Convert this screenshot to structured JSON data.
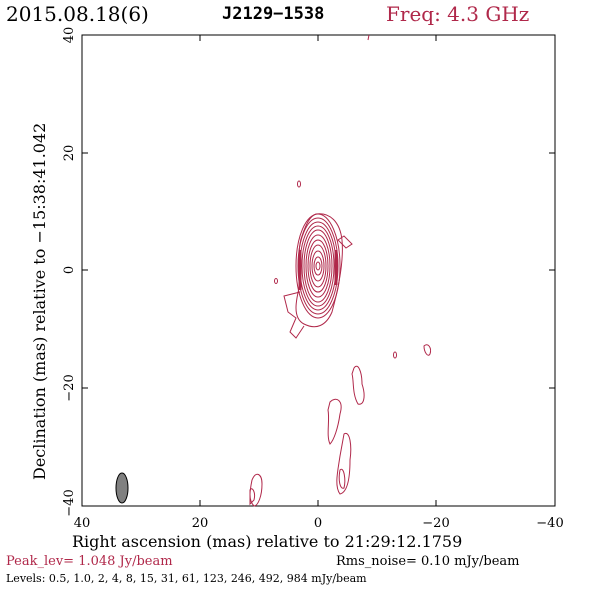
{
  "header": {
    "date": "2015.08.18(6)",
    "source": "J2129−1538",
    "freq": "Freq: 4.3 GHz"
  },
  "axes": {
    "xlabel": "Right ascension (mas) relative to 21:29:12.1759",
    "ylabel": "Declination (mas) relative to −15:38:41.042",
    "x_ticks": [
      "40",
      "20",
      "0",
      "−20",
      "−40"
    ],
    "y_ticks": [
      "40",
      "20",
      "0",
      "−20",
      "−40"
    ]
  },
  "footer": {
    "peak": "Peak_lev=  1.048 Jy/beam",
    "rms": "Rms_noise= 0.10 mJy/beam",
    "levels": "Levels: 0.5, 1.0,   2,   4,   8,  15,  31,  61, 123, 246, 492, 984 mJy/beam"
  },
  "colors": {
    "contour": "#b0284a",
    "beam_fill": "#808080",
    "axis": "#000000"
  }
}
